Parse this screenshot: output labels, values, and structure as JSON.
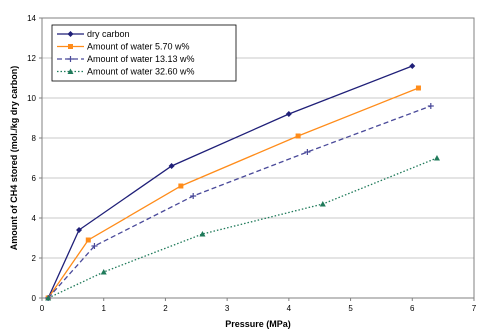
{
  "chart_data": {
    "type": "line",
    "xlabel": "Pressure (MPa)",
    "ylabel": "Amount of CH4 stored (mol./kg dry carbon)",
    "xlim": [
      0,
      7
    ],
    "ylim": [
      0,
      14
    ],
    "xticks": [
      0,
      1,
      2,
      3,
      4,
      5,
      6,
      7
    ],
    "yticks": [
      0,
      2,
      4,
      6,
      8,
      10,
      12,
      14
    ],
    "grid": "horizontal",
    "legend_position": "top-left",
    "series": [
      {
        "name": "dry carbon",
        "color": "#1f1f78",
        "line_style": "solid",
        "marker": "diamond",
        "points": [
          [
            0.1,
            0.0
          ],
          [
            0.6,
            3.4
          ],
          [
            2.1,
            6.6
          ],
          [
            4.0,
            9.2
          ],
          [
            6.0,
            11.6
          ]
        ]
      },
      {
        "name": "Amount of water 5.70 w%",
        "color": "#ff8c1a",
        "line_style": "solid",
        "marker": "square",
        "points": [
          [
            0.1,
            0.0
          ],
          [
            0.75,
            2.9
          ],
          [
            2.25,
            5.6
          ],
          [
            4.15,
            8.1
          ],
          [
            6.1,
            10.5
          ]
        ]
      },
      {
        "name": "Amount of water 13.13 w%",
        "color": "#4a4a9a",
        "line_style": "dashed",
        "marker": "plus",
        "points": [
          [
            0.1,
            0.0
          ],
          [
            0.85,
            2.6
          ],
          [
            2.45,
            5.1
          ],
          [
            4.3,
            7.3
          ],
          [
            6.3,
            9.6
          ]
        ]
      },
      {
        "name": "Amount of water 32.60 w%",
        "color": "#1f7a5a",
        "line_style": "dotted",
        "marker": "triangle",
        "points": [
          [
            0.1,
            0.0
          ],
          [
            1.0,
            1.3
          ],
          [
            2.6,
            3.2
          ],
          [
            4.55,
            4.7
          ],
          [
            6.4,
            7.0
          ]
        ]
      }
    ]
  }
}
